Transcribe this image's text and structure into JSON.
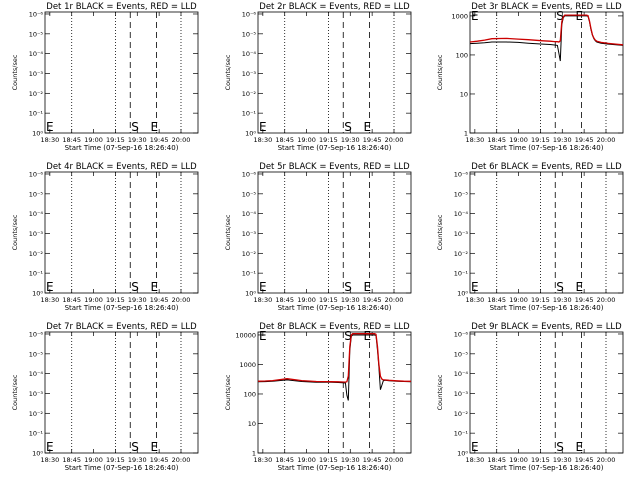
{
  "chart_data": [
    {
      "id": "det1",
      "type": "line",
      "title": "Det 1r BLACK = Events, RED = LLD",
      "xlabel": "Start Time (07-Sep-16 18:26:40)",
      "ylabel": "Counts/sec",
      "xticks": [
        "18:30",
        "18:45",
        "19:00",
        "19:15",
        "19:30",
        "19:45",
        "20:00"
      ],
      "yticks": [
        "10⁰",
        "10⁻¹",
        "10⁻²",
        "10⁻³",
        "10⁻⁴",
        "10⁻⁵",
        "10⁻⁶"
      ],
      "markers": {
        "E": "E",
        "S": "S",
        "F": "E"
      },
      "series": []
    },
    {
      "id": "det2",
      "type": "line",
      "title": "Det 2r BLACK = Events, RED = LLD",
      "xlabel": "Start Time (07-Sep-16 18:26:40)",
      "ylabel": "Counts/sec",
      "xticks": [
        "18:30",
        "18:45",
        "19:00",
        "19:15",
        "19:30",
        "19:45",
        "20:00"
      ],
      "yticks": [
        "10⁰",
        "10⁻¹",
        "10⁻²",
        "10⁻³",
        "10⁻⁴",
        "10⁻⁵",
        "10⁻⁶"
      ],
      "markers": {
        "E": "E",
        "S": "S",
        "F": "E"
      },
      "series": []
    },
    {
      "id": "det3",
      "type": "line",
      "title": "Det 3r BLACK = Events, RED = LLD",
      "xlabel": "Start Time (07-Sep-16 18:26:40)",
      "ylabel": "Counts/sec",
      "xticks": [
        "18:30",
        "18:45",
        "19:00",
        "19:15",
        "19:30",
        "19:45",
        "20:00"
      ],
      "yticks": [
        "1",
        "10",
        "100",
        "1000"
      ],
      "markers": {
        "E": "E",
        "S": "S",
        "F": "E"
      },
      "series": [
        {
          "color": "#000000",
          "x": [
            0,
            5,
            10,
            15,
            25,
            33,
            40,
            50,
            55,
            58,
            60,
            61,
            62,
            63,
            64,
            65,
            70,
            75,
            79,
            80,
            81,
            82,
            83,
            84,
            85,
            86,
            87,
            90,
            95,
            100,
            105
          ],
          "y": [
            195,
            200,
            205,
            215,
            215,
            210,
            200,
            190,
            185,
            180,
            175,
            110,
            70,
            600,
            900,
            1000,
            1000,
            1000,
            1000,
            1000,
            980,
            700,
            450,
            320,
            260,
            230,
            215,
            200,
            190,
            182,
            175
          ]
        },
        {
          "color": "#cc0000",
          "x": [
            0,
            5,
            10,
            15,
            25,
            33,
            40,
            50,
            55,
            58,
            60,
            61,
            62,
            63,
            64,
            65,
            70,
            75,
            79,
            80,
            81,
            82,
            83,
            84,
            85,
            86,
            87,
            90,
            95,
            100,
            105
          ],
          "y": [
            215,
            225,
            240,
            260,
            265,
            255,
            245,
            230,
            225,
            220,
            218,
            215,
            230,
            700,
            950,
            1050,
            1050,
            1050,
            1050,
            1050,
            1020,
            740,
            480,
            330,
            270,
            240,
            225,
            210,
            198,
            190,
            182
          ]
        }
      ]
    },
    {
      "id": "det4",
      "type": "line",
      "title": "Det 4r BLACK = Events, RED = LLD",
      "xlabel": "Start Time (07-Sep-16 18:26:40)",
      "ylabel": "Counts/sec",
      "xticks": [
        "18:30",
        "18:45",
        "19:00",
        "19:15",
        "19:30",
        "19:45",
        "20:00"
      ],
      "yticks": [
        "10⁰",
        "10⁻¹",
        "10⁻²",
        "10⁻³",
        "10⁻⁴",
        "10⁻⁵",
        "10⁻⁶"
      ],
      "markers": {
        "E": "E",
        "S": "S",
        "F": "E"
      },
      "series": []
    },
    {
      "id": "det5",
      "type": "line",
      "title": "Det 5r BLACK = Events, RED = LLD",
      "xlabel": "Start Time (07-Sep-16 18:26:40)",
      "ylabel": "Counts/sec",
      "xticks": [
        "18:30",
        "18:45",
        "19:00",
        "19:15",
        "19:30",
        "19:45",
        "20:00"
      ],
      "yticks": [
        "10⁰",
        "10⁻¹",
        "10⁻²",
        "10⁻³",
        "10⁻⁴",
        "10⁻⁵",
        "10⁻⁶"
      ],
      "markers": {
        "E": "E",
        "S": "S",
        "F": "E"
      },
      "series": []
    },
    {
      "id": "det6",
      "type": "line",
      "title": "Det 6r BLACK = Events, RED = LLD",
      "xlabel": "Start Time (07-Sep-16 18:26:40)",
      "ylabel": "Counts/sec",
      "xticks": [
        "18:30",
        "18:45",
        "19:00",
        "19:15",
        "19:30",
        "19:45",
        "20:00"
      ],
      "yticks": [
        "10⁰",
        "10⁻¹",
        "10⁻²",
        "10⁻³",
        "10⁻⁴",
        "10⁻⁵",
        "10⁻⁶"
      ],
      "markers": {
        "E": "E",
        "S": "S",
        "F": "E"
      },
      "series": []
    },
    {
      "id": "det7",
      "type": "line",
      "title": "Det 7r BLACK = Events, RED = LLD",
      "xlabel": "Start Time (07-Sep-16 18:26:40)",
      "ylabel": "Counts/sec",
      "xticks": [
        "18:30",
        "18:45",
        "19:00",
        "19:15",
        "19:30",
        "19:45",
        "20:00"
      ],
      "yticks": [
        "10⁰",
        "10⁻¹",
        "10⁻²",
        "10⁻³",
        "10⁻⁴",
        "10⁻⁵",
        "10⁻⁶"
      ],
      "markers": {
        "E": "E",
        "S": "S",
        "F": "E"
      },
      "series": []
    },
    {
      "id": "det8",
      "type": "line",
      "title": "Det 8r BLACK = Events, RED = LLD",
      "xlabel": "Start Time (07-Sep-16 18:26:40)",
      "ylabel": "Counts/sec",
      "xticks": [
        "18:30",
        "18:45",
        "19:00",
        "19:15",
        "19:30",
        "19:45",
        "20:00"
      ],
      "yticks": [
        "1",
        "10",
        "100",
        "1000",
        "10000"
      ],
      "markers": {
        "E": "E",
        "S": "S",
        "F": "E"
      },
      "series": [
        {
          "color": "#000000",
          "x": [
            0,
            5,
            10,
            20,
            30,
            40,
            50,
            55,
            58,
            60,
            61,
            62,
            63,
            64,
            65,
            70,
            75,
            79,
            80,
            81,
            82,
            83,
            84,
            85,
            86,
            87,
            90,
            95,
            100,
            105
          ],
          "y": [
            260,
            262,
            268,
            300,
            265,
            250,
            248,
            245,
            240,
            235,
            90,
            60,
            3000,
            9000,
            10000,
            10000,
            10000,
            10000,
            10000,
            9500,
            3000,
            800,
            140,
            200,
            280,
            290,
            280,
            270,
            265,
            260
          ]
        },
        {
          "color": "#cc0000",
          "x": [
            0,
            5,
            10,
            20,
            30,
            40,
            50,
            55,
            58,
            60,
            61,
            62,
            63,
            64,
            65,
            70,
            75,
            79,
            80,
            81,
            82,
            83,
            84,
            85,
            86,
            87,
            90,
            95,
            100,
            105
          ],
          "y": [
            270,
            275,
            285,
            330,
            285,
            265,
            260,
            258,
            255,
            252,
            260,
            400,
            4000,
            10000,
            11000,
            11000,
            11000,
            11000,
            11000,
            10500,
            4000,
            1000,
            400,
            320,
            300,
            300,
            290,
            280,
            272,
            268
          ]
        }
      ]
    },
    {
      "id": "det9",
      "type": "line",
      "title": "Det 9r BLACK = Events, RED = LLD",
      "xlabel": "Start Time (07-Sep-16 18:26:40)",
      "ylabel": "Counts/sec",
      "xticks": [
        "18:30",
        "18:45",
        "19:00",
        "19:15",
        "19:30",
        "19:45",
        "20:00"
      ],
      "yticks": [
        "10⁰",
        "10⁻¹",
        "10⁻²",
        "10⁻³",
        "10⁻⁴",
        "10⁻⁵",
        "10⁻⁶"
      ],
      "markers": {
        "E": "E",
        "S": "S",
        "F": "E"
      },
      "series": []
    }
  ]
}
